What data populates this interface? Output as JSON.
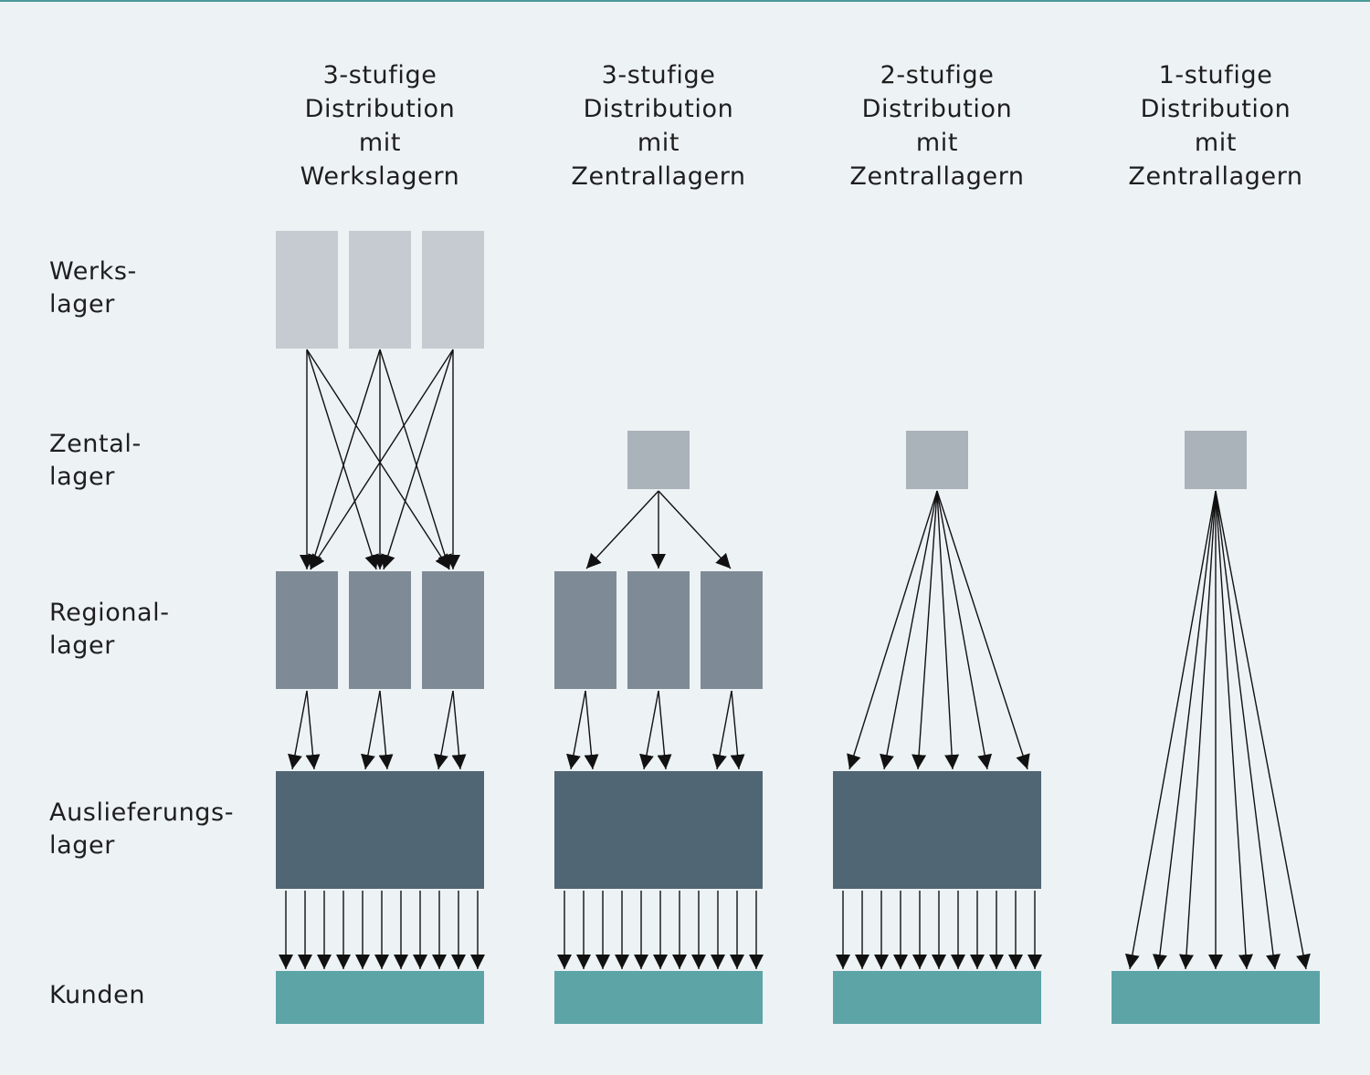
{
  "colors": {
    "background": "#edf2f5",
    "werkslager": "#c6cbd2",
    "zentrallager": "#aab2ba",
    "regionallager": "#7e8b96",
    "auslieferungslager": "#516674",
    "kunden": "#5da4a7",
    "arrow": "#111111"
  },
  "columns": [
    {
      "title": "3-stufige\nDistribution\nmit\nWerkslagern"
    },
    {
      "title": "3-stufige\nDistribution\nmit\nZentrallagern"
    },
    {
      "title": "2-stufige\nDistribution\nmit\nZentrallagern"
    },
    {
      "title": "1-stufige\nDistribution\nmit\nZentrallagern"
    }
  ],
  "rows": [
    {
      "label": "Werks-\nlager"
    },
    {
      "label": "Zental-\nlager"
    },
    {
      "label": "Regional-\nlager"
    },
    {
      "label": "Auslieferungs-\nlager"
    },
    {
      "label": "Kunden"
    }
  ]
}
